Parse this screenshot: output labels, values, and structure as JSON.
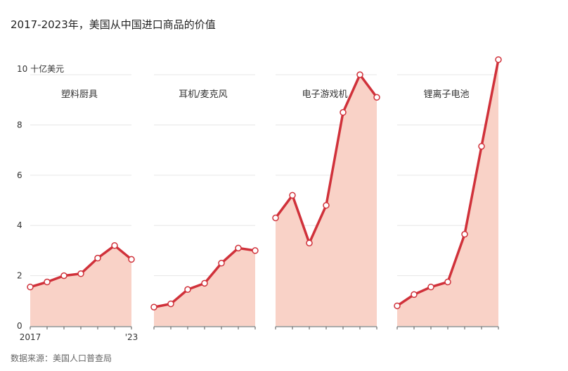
{
  "title": "2017-2023年，美国从中国进口商品的价值",
  "source": "数据来源：美国人口普查局",
  "colors": {
    "line": "#d0313a",
    "area": "#f9d2c7",
    "grid": "#e6e6e6",
    "axis": "#555555"
  },
  "chart_data": {
    "type": "area",
    "ylabel": "10 十亿美元",
    "ylim": [
      0,
      10.9
    ],
    "yticks": [
      0,
      2,
      4,
      6,
      8
    ],
    "ytick_top_label": "10 十亿美元",
    "x": [
      2017,
      2018,
      2019,
      2020,
      2021,
      2022,
      2023
    ],
    "xtick_labels": [
      "2017",
      "'23"
    ],
    "grid": true,
    "series": [
      {
        "name": "塑料厨具",
        "values": [
          1.55,
          1.75,
          2.0,
          2.08,
          2.7,
          3.2,
          2.65
        ]
      },
      {
        "name": "耳机/麦克风",
        "values": [
          0.75,
          0.88,
          1.45,
          1.7,
          2.5,
          3.1,
          3.0
        ]
      },
      {
        "name": "电子游戏机",
        "values": [
          4.3,
          5.2,
          3.3,
          4.8,
          8.5,
          10.0,
          9.1
        ]
      },
      {
        "name": "锂离子电池",
        "values": [
          0.8,
          1.25,
          1.55,
          1.75,
          3.65,
          7.15,
          10.6
        ]
      }
    ]
  }
}
